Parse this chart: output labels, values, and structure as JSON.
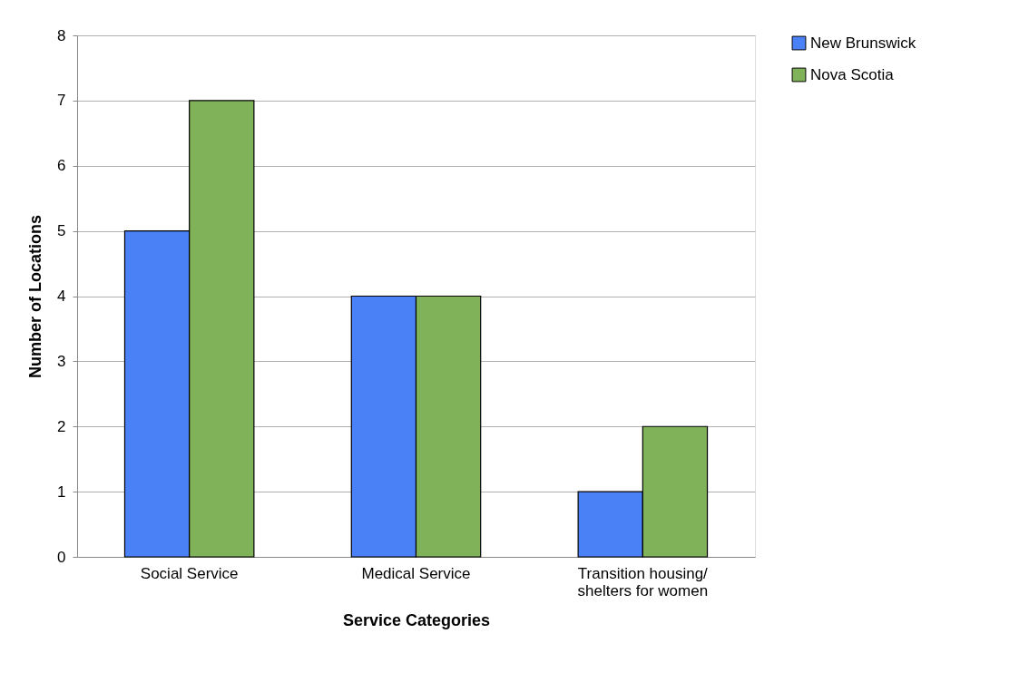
{
  "chart_data": {
    "type": "bar",
    "xlabel": "Service Categories",
    "ylabel": "Number of Locations",
    "categories": [
      "Social Service",
      "Medical Service",
      "Transition housing/ shelters for women"
    ],
    "series": [
      {
        "name": "New Brunswick",
        "color": "#4a81f7",
        "values": [
          5,
          4,
          1
        ]
      },
      {
        "name": "Nova Scotia",
        "color": "#80b25a",
        "values": [
          7,
          4,
          2
        ]
      }
    ],
    "ylim": [
      0,
      8
    ],
    "yticks": [
      0,
      1,
      2,
      3,
      4,
      5,
      6,
      7,
      8
    ],
    "grid": "y",
    "legend": "right"
  }
}
